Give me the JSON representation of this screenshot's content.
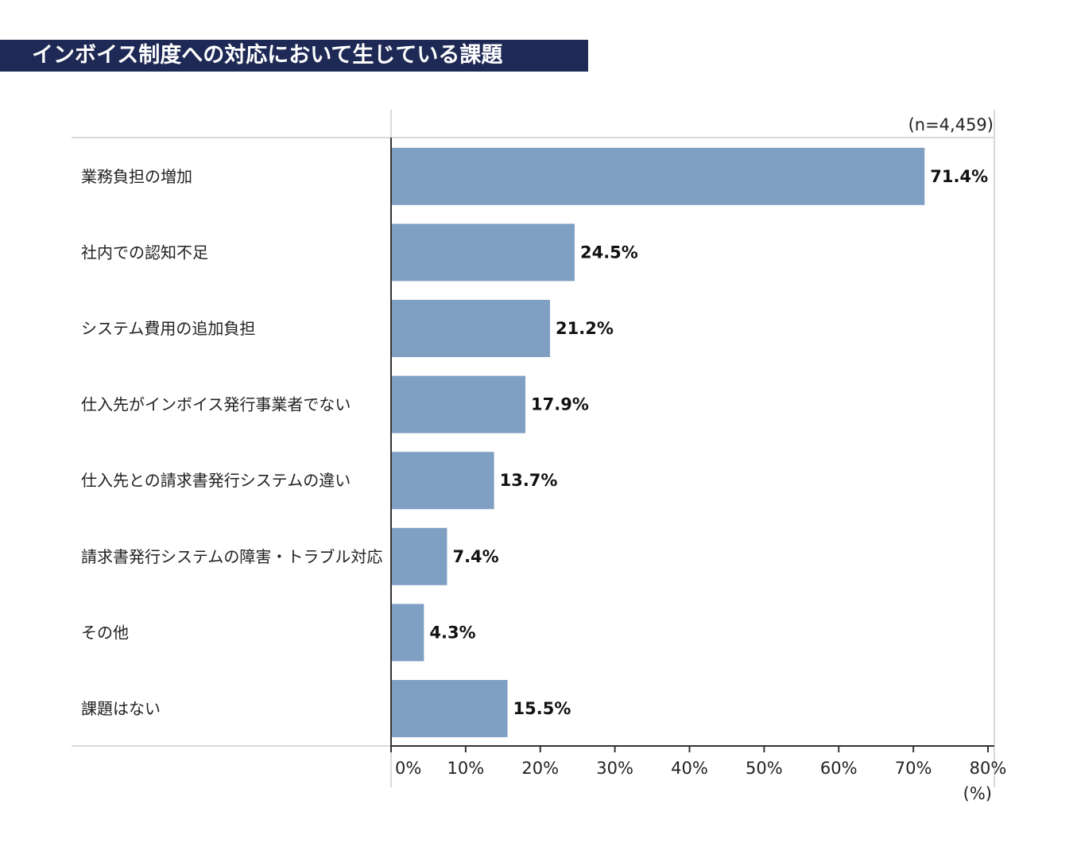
{
  "title": "インボイス制度への対応において生じている課題",
  "colors": {
    "title_bg": "#1e2a55",
    "bar": "#7f9fc3",
    "axis": "#333333",
    "grid": "#d9d9d9"
  },
  "chart_data": {
    "type": "bar",
    "orientation": "horizontal",
    "title": "インボイス制度への対応において生じている課題",
    "sample_note": "(n=4,459)",
    "unit_label": "(%)",
    "categories": [
      "業務負担の増加",
      "社内での認知不足",
      "システム費用の追加負担",
      "仕入先がインボイス発行事業者でない",
      "仕入先との請求書発行システムの違い",
      "請求書発行システムの障害・トラブル対応",
      "その他",
      "課題はない"
    ],
    "values": [
      71.4,
      24.5,
      21.2,
      17.9,
      13.7,
      7.4,
      4.3,
      15.5
    ],
    "value_labels": [
      "71.4%",
      "24.5%",
      "21.2%",
      "17.9%",
      "13.7%",
      "7.4%",
      "4.3%",
      "15.5%"
    ],
    "xlim": [
      0,
      80
    ],
    "ticks": [
      0,
      10,
      20,
      30,
      40,
      50,
      60,
      70,
      80
    ],
    "tick_labels": [
      "0%",
      "10%",
      "20%",
      "30%",
      "40%",
      "50%",
      "60%",
      "70%",
      "80%"
    ],
    "grid": false,
    "legend": "none"
  }
}
